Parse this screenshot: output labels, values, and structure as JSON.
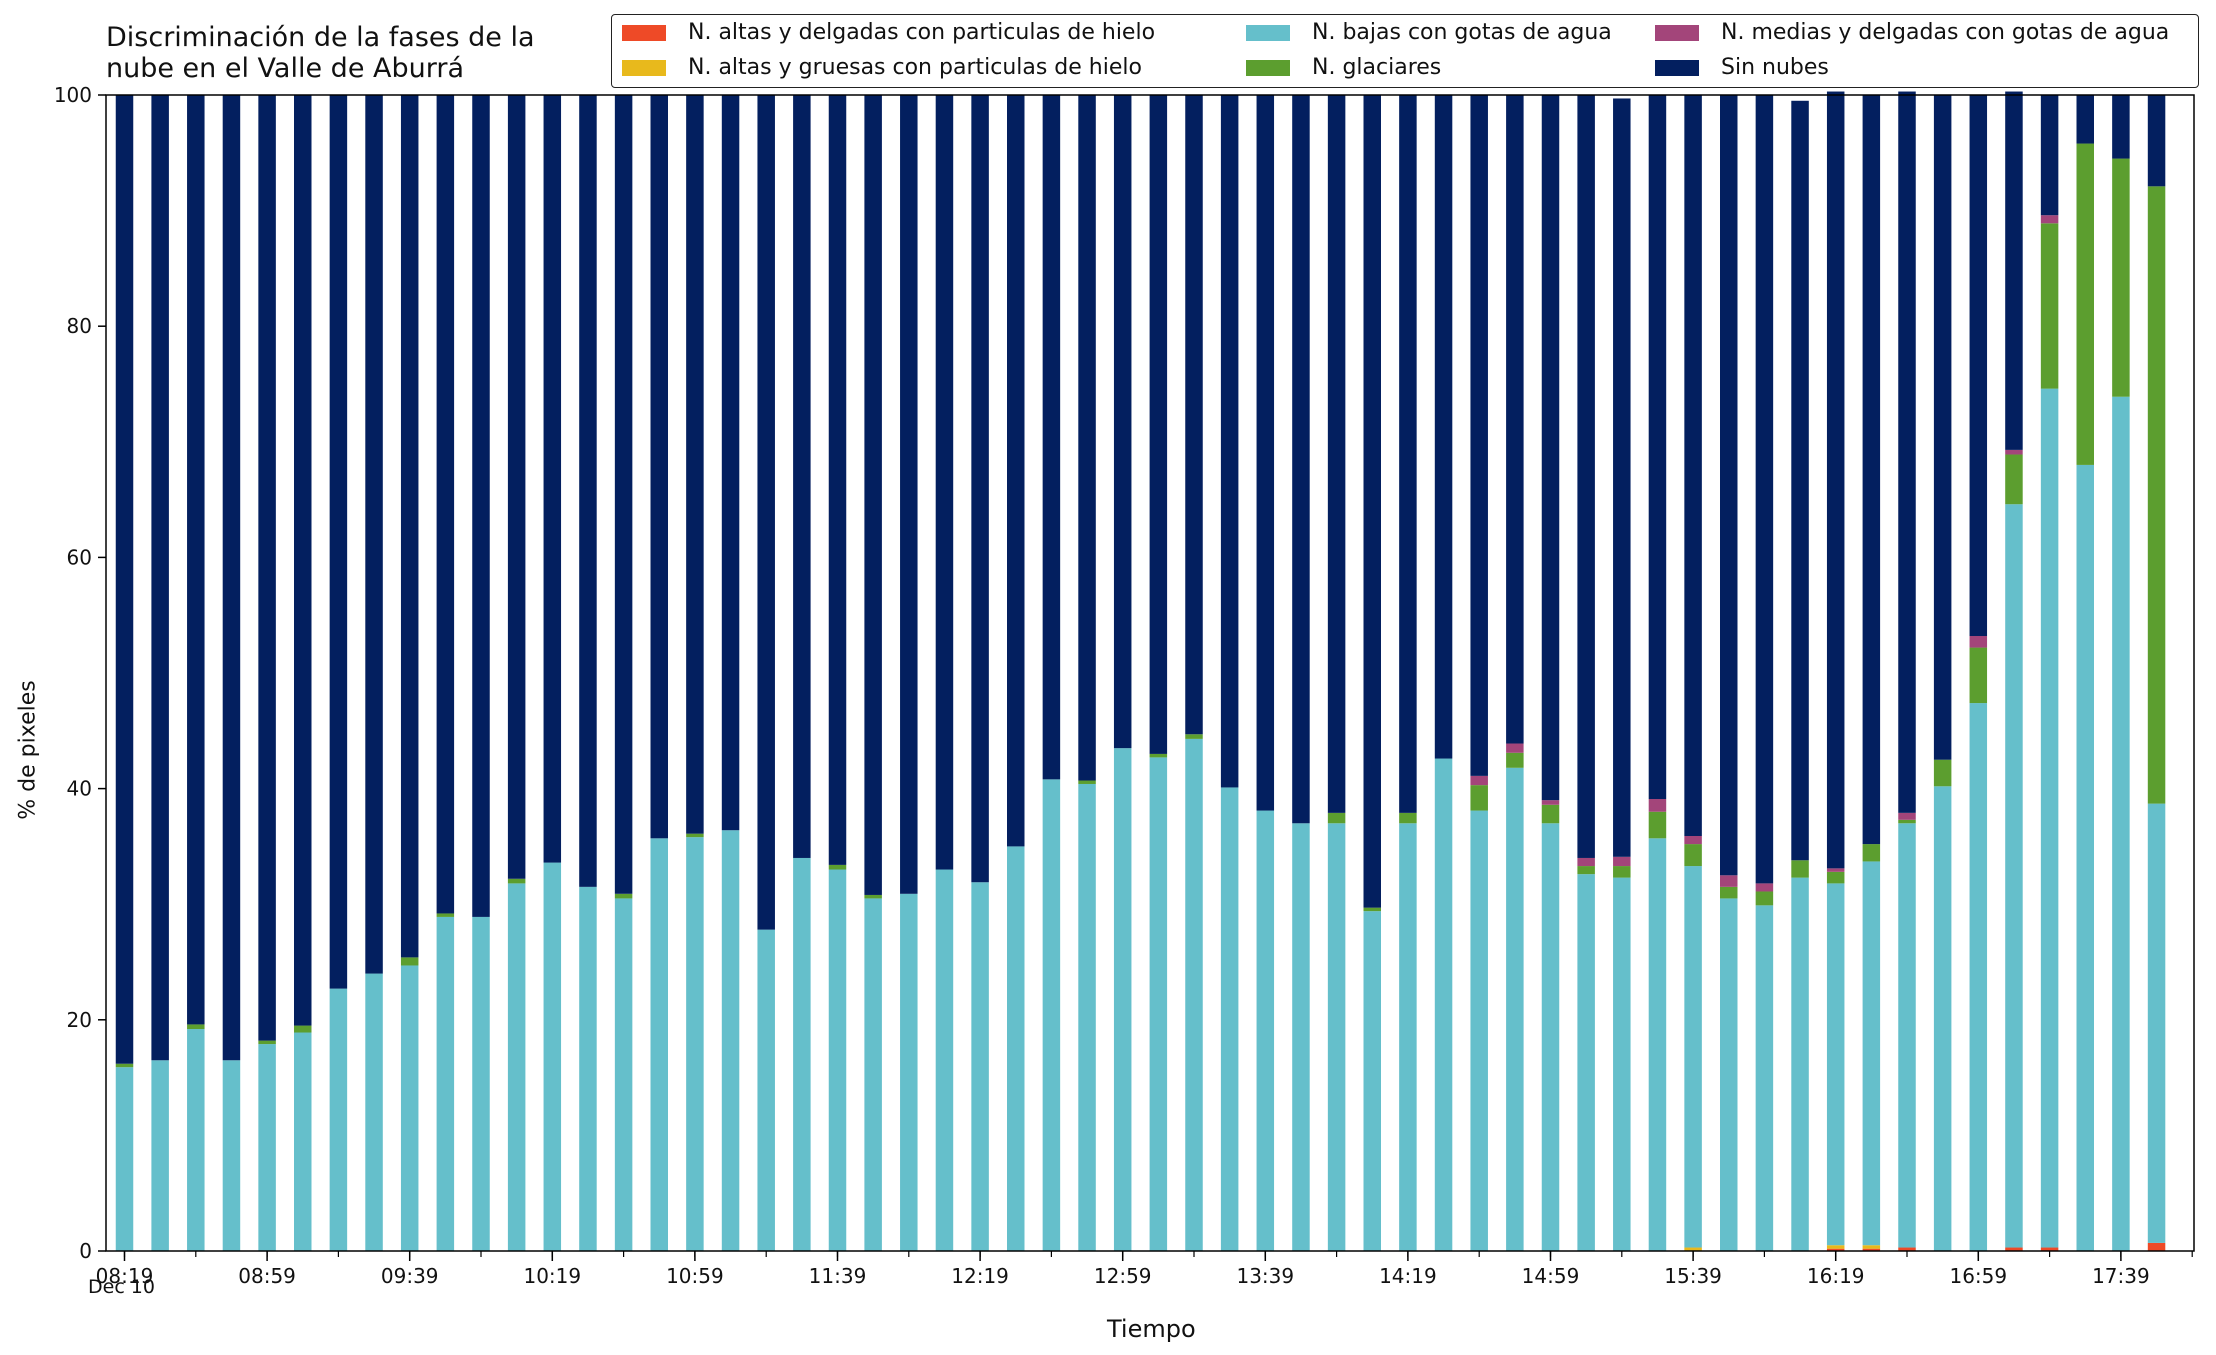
{
  "chart_data": {
    "type": "bar",
    "stacked": true,
    "title_lines": [
      "Discriminación de la fases de la",
      "nube en el Valle de Aburrá"
    ],
    "xlabel": "Tiempo",
    "xlabel_sub": "Dec 10",
    "ylabel": "% de pixeles",
    "ylim": [
      0,
      100
    ],
    "yticks": [
      0,
      20,
      40,
      60,
      80,
      100
    ],
    "xtick_labels": [
      "08:19",
      "08:59",
      "09:39",
      "10:19",
      "10:59",
      "11:39",
      "12:19",
      "12:59",
      "13:39",
      "14:19",
      "14:59",
      "15:39",
      "16:19",
      "16:59",
      "17:39"
    ],
    "legend_location": "top",
    "series": [
      {
        "name": "N. altas y delgadas con particulas de hielo",
        "color": "#ee4a27",
        "values": [
          0,
          0,
          0,
          0,
          0,
          0,
          0,
          0,
          0,
          0,
          0,
          0,
          0,
          0,
          0,
          0,
          0,
          0,
          0,
          0,
          0,
          0,
          0,
          0,
          0,
          0,
          0,
          0,
          0,
          0,
          0,
          0,
          0,
          0,
          0,
          0,
          0,
          0,
          0,
          0,
          0,
          0,
          0,
          0,
          0,
          0,
          0,
          0,
          0.2,
          0.2,
          0.3,
          0,
          0,
          0.3,
          0.3,
          0,
          0,
          0.7
        ]
      },
      {
        "name": "N. altas y gruesas con particulas de hielo",
        "color": "#e8b91c",
        "values": [
          0,
          0,
          0,
          0,
          0,
          0,
          0,
          0,
          0,
          0,
          0,
          0,
          0,
          0,
          0,
          0,
          0,
          0,
          0,
          0,
          0,
          0,
          0,
          0,
          0,
          0,
          0,
          0,
          0,
          0,
          0,
          0,
          0,
          0,
          0,
          0,
          0,
          0,
          0,
          0,
          0,
          0,
          0,
          0,
          0.3,
          0,
          0,
          0,
          0.3,
          0.3,
          0,
          0,
          0,
          0,
          0,
          0,
          0,
          0
        ]
      },
      {
        "name": "N. bajas con gotas de agua",
        "color": "#65bfcb",
        "values": [
          15.9,
          16.5,
          19.2,
          16.5,
          17.9,
          18.9,
          22.7,
          24,
          24.7,
          28.9,
          28.9,
          31.8,
          33.6,
          31.5,
          30.5,
          35.7,
          35.8,
          36.4,
          27.8,
          34,
          33,
          30.5,
          30.9,
          33,
          31.9,
          35,
          40.8,
          40.4,
          43.5,
          42.7,
          44.3,
          40.1,
          38.1,
          37,
          37,
          29.4,
          37,
          42.6,
          38.1,
          41.8,
          37,
          32.6,
          32.3,
          35.7,
          33,
          30.5,
          29.9,
          32.3,
          31.3,
          33.2,
          36.7,
          40.2,
          47.4,
          64.3,
          74.3,
          68,
          73.9,
          38
        ]
      },
      {
        "name": "N. glaciares",
        "color": "#5c9e2f",
        "values": [
          0.3,
          0,
          0.4,
          0,
          0.3,
          0.6,
          0,
          0,
          0.7,
          0.3,
          0,
          0.4,
          0,
          0,
          0.4,
          0,
          0.3,
          0,
          0,
          0,
          0.4,
          0.3,
          0,
          0,
          0,
          0,
          0,
          0.3,
          0,
          0.3,
          0.4,
          0,
          0,
          0,
          0.9,
          0.3,
          0.9,
          0,
          2.2,
          1.3,
          1.6,
          0.7,
          1,
          2.3,
          1.9,
          1,
          1.2,
          1.5,
          1,
          1.5,
          0.3,
          2.3,
          4.8,
          4.3,
          14.3,
          27.8,
          20.6,
          53.4
        ]
      },
      {
        "name": "N. medias y delgadas con gotas de agua",
        "color": "#a3457a",
        "values": [
          0,
          0,
          0,
          0,
          0,
          0,
          0,
          0,
          0,
          0,
          0,
          0,
          0,
          0,
          0,
          0,
          0,
          0,
          0,
          0,
          0,
          0,
          0,
          0,
          0,
          0,
          0,
          0,
          0,
          0,
          0,
          0,
          0,
          0,
          0,
          0,
          0,
          0,
          0.8,
          0.8,
          0.4,
          0.7,
          0.8,
          1.1,
          0.7,
          1,
          0.7,
          0,
          0.3,
          0,
          0.6,
          0,
          1,
          0.4,
          0.7,
          0,
          0,
          0
        ]
      },
      {
        "name": "Sin nubes",
        "color": "#031f5f",
        "values": [
          83.8,
          83.5,
          80.4,
          83.5,
          81.8,
          80.5,
          77.3,
          76,
          74.6,
          70.8,
          71.1,
          67.8,
          66.4,
          68.5,
          69.1,
          64.3,
          63.9,
          63.6,
          72.2,
          66,
          66.6,
          69.2,
          69.1,
          67,
          68.1,
          65,
          59.2,
          59.3,
          56.5,
          57,
          55.3,
          59.9,
          61.9,
          63,
          62.1,
          70.3,
          62.1,
          57.4,
          58.9,
          56.1,
          61,
          66,
          65.6,
          60.9,
          64.1,
          67.5,
          68.2,
          65.7,
          67.2,
          64.8,
          62.4,
          57.5,
          46.8,
          31,
          10.4,
          4.2,
          5.5,
          7.9
        ]
      }
    ]
  }
}
